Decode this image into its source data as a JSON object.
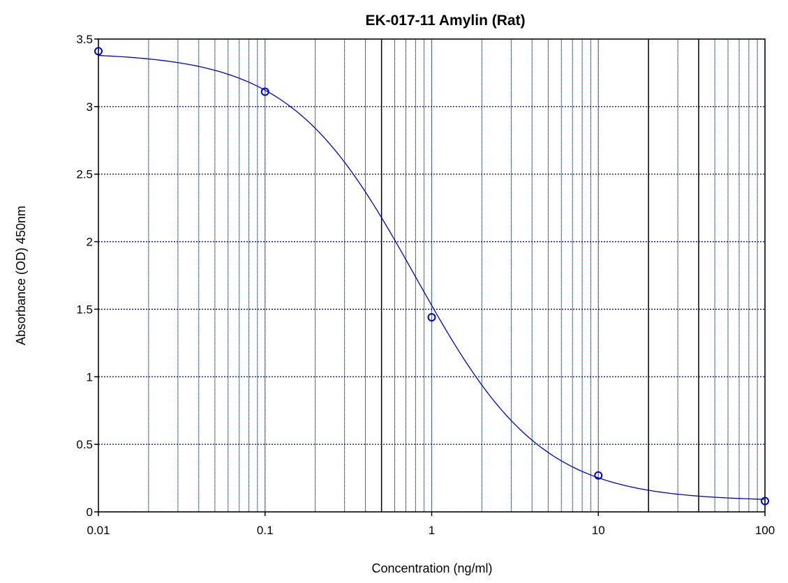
{
  "chart_data": {
    "type": "scatter",
    "title": "EK-017-11 Amylin (Rat)",
    "xlabel": "Concentration (ng/ml)",
    "ylabel": "Absorbance (OD) 450nm",
    "x_scale": "log",
    "xlim": [
      0.01,
      100
    ],
    "ylim": [
      0,
      3.5
    ],
    "x_ticks": [
      {
        "value": 0.01,
        "label": "0.01"
      },
      {
        "value": 0.1,
        "label": "0.1"
      },
      {
        "value": 1,
        "label": "1"
      },
      {
        "value": 10,
        "label": "10"
      },
      {
        "value": 100,
        "label": "100"
      }
    ],
    "y_ticks": [
      {
        "value": 0,
        "label": "0"
      },
      {
        "value": 0.5,
        "label": "0.5"
      },
      {
        "value": 1,
        "label": "1"
      },
      {
        "value": 1.5,
        "label": "1.5"
      },
      {
        "value": 2,
        "label": "2"
      },
      {
        "value": 2.5,
        "label": "2.5"
      },
      {
        "value": 3,
        "label": "3"
      },
      {
        "value": 3.5,
        "label": "3.5"
      }
    ],
    "grid": true,
    "solid_vertical_lines": [
      0.5,
      20,
      40
    ],
    "series": [
      {
        "points": [
          {
            "x": 0.01,
            "y": 3.41
          },
          {
            "x": 0.1,
            "y": 3.11
          },
          {
            "x": 1,
            "y": 1.44
          },
          {
            "x": 10,
            "y": 0.27
          },
          {
            "x": 100,
            "y": 0.08
          }
        ],
        "marker": "open-circle",
        "fit": "4-parameter logistic",
        "fit_params": {
          "top": 3.4,
          "bottom": 0.08,
          "ec50": 0.8,
          "hill": 1.15
        },
        "color": "#0000cc"
      }
    ],
    "colors": {
      "curve": "#0000cc",
      "grid_major": "#00008b",
      "grid_minor_a": "#2e8b8b",
      "grid_minor_b": "#b03060",
      "solid_line": "#000000",
      "background": "#ffffff"
    }
  }
}
